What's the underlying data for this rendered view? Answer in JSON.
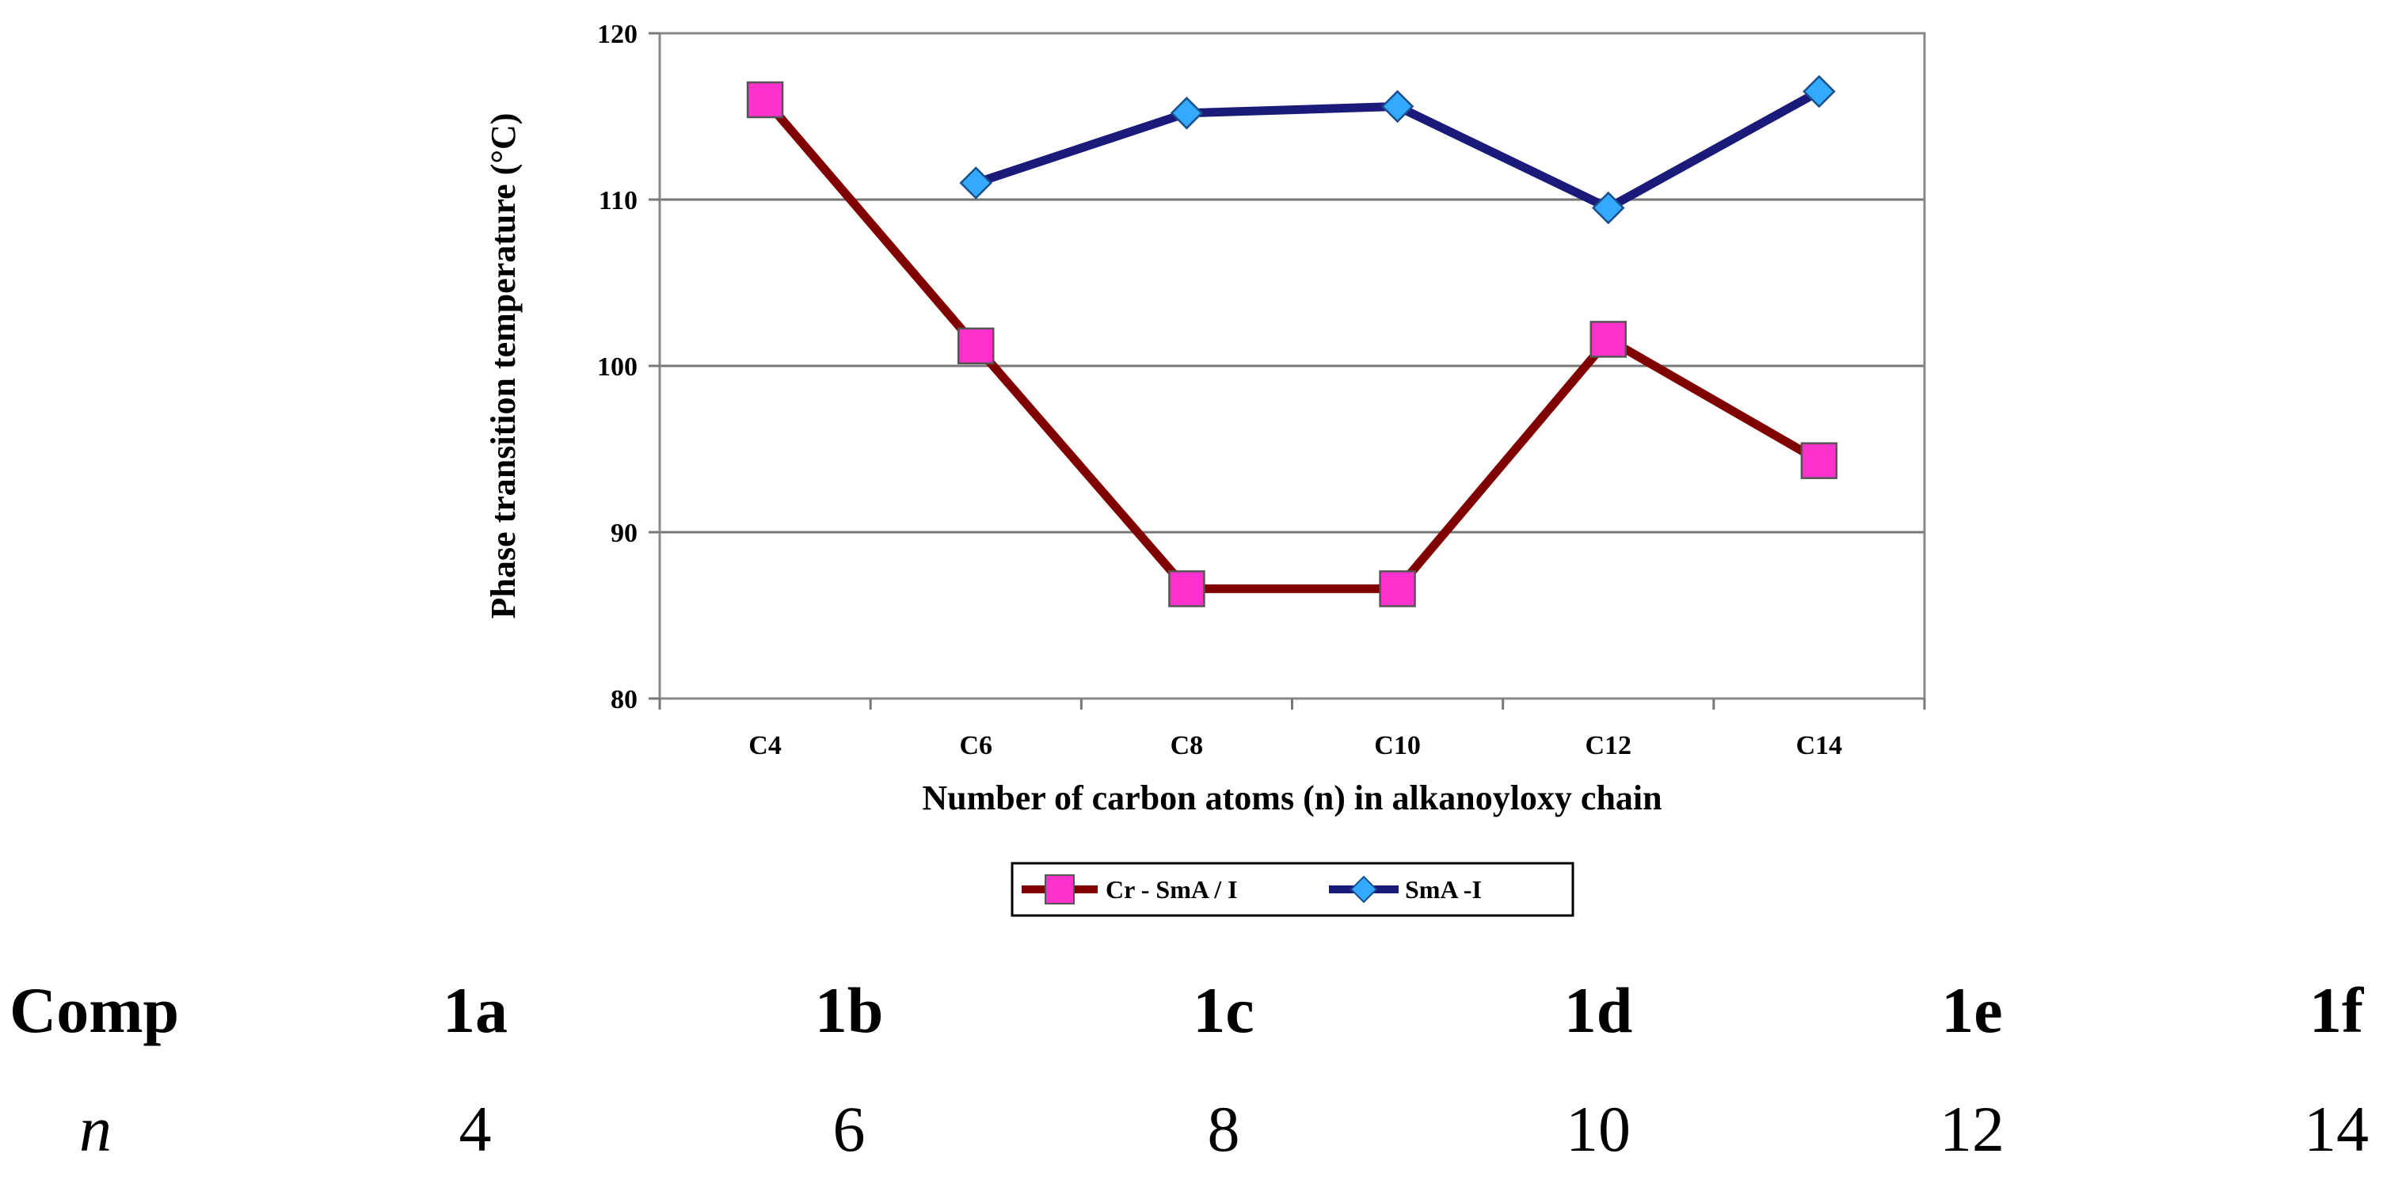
{
  "chart_data": {
    "type": "line",
    "categories": [
      "C4",
      "C6",
      "C8",
      "C10",
      "C12",
      "C14"
    ],
    "series": [
      {
        "name": "Cr - SmA / I",
        "values": [
          116,
          101.2,
          86.6,
          86.6,
          101.6,
          94.3
        ],
        "color": "#800000",
        "marker": "square",
        "marker_color": "#ff33cc"
      },
      {
        "name": "SmA -I",
        "values": [
          null,
          111,
          115.2,
          115.6,
          109.5,
          116.5
        ],
        "color": "#1a1a7a",
        "marker": "diamond",
        "marker_color": "#33aaff"
      }
    ],
    "ylabel": "Phase transition temperature (°C)",
    "xlabel": "Number of carbon atoms (n) in alkanoyloxy chain",
    "ylim": [
      80,
      120
    ],
    "yticks": [
      80,
      90,
      100,
      110,
      120
    ],
    "grid": true,
    "legend": "bottom"
  },
  "table": {
    "row1_label": "Comp",
    "row2_label": "n",
    "compounds": [
      "1a",
      "1b",
      "1c",
      "1d",
      "1e",
      "1f"
    ],
    "n_values": [
      "4",
      "6",
      "8",
      "10",
      "12",
      "14"
    ]
  }
}
